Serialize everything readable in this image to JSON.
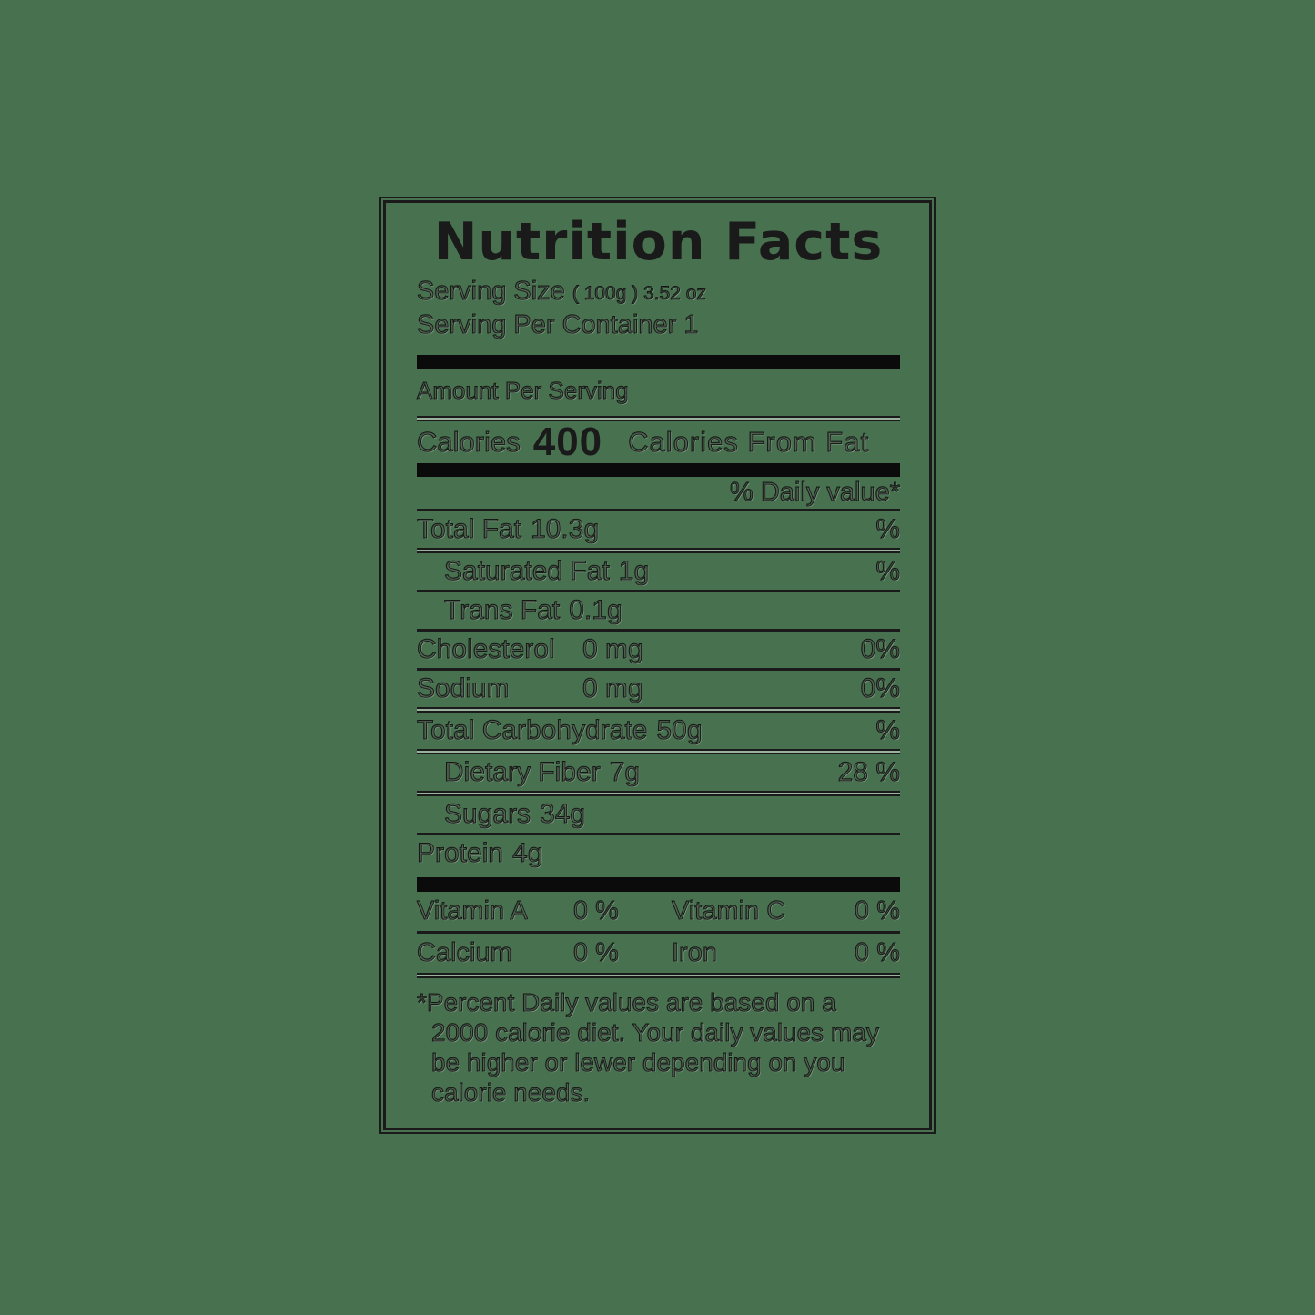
{
  "colors": {
    "background": "#48724F",
    "ink": "#1a1a1a"
  },
  "label": {
    "title": "Nutrition Facts",
    "serving": {
      "size_label": "Serving Size",
      "size_value": "( 100g ) 3.52 oz",
      "per_container": "Serving Per Container 1"
    },
    "amount_per_serving": "Amount Per Serving",
    "calories": {
      "label": "Calories",
      "value": "400",
      "from_fat_label": "Calories From Fat"
    },
    "daily_value_header": "% Daily value*",
    "rows": [
      {
        "name": "Total Fat",
        "amount": "10.3g",
        "dv": "%"
      },
      {
        "name": "Saturated Fat",
        "amount": "1g",
        "dv": "%"
      },
      {
        "name": "Trans Fat",
        "amount": "0.1g",
        "dv": ""
      },
      {
        "name": "Cholesterol",
        "amount": "0 mg",
        "dv": "0%"
      },
      {
        "name": "Sodium",
        "amount": "0 mg",
        "dv": "0%"
      },
      {
        "name": "Total Carbohydrate",
        "amount": "50g",
        "dv": "%"
      },
      {
        "name": "Dietary Fiber",
        "amount": "7g",
        "dv": "28 %"
      },
      {
        "name": "Sugars",
        "amount": "34g",
        "dv": ""
      },
      {
        "name": "Protein",
        "amount": "4g",
        "dv": ""
      }
    ],
    "micros": [
      {
        "name": "Vitamin A",
        "value": "0 %"
      },
      {
        "name": "Vitamin C",
        "value": "0 %"
      },
      {
        "name": "Calcium",
        "value": "0 %"
      },
      {
        "name": "Iron",
        "value": "0 %"
      }
    ],
    "footnote": "*Percent Daily values are based on a\n2000 calorie diet. Your daily values may\nbe higher or lewer depending on you\ncalorie needs."
  }
}
